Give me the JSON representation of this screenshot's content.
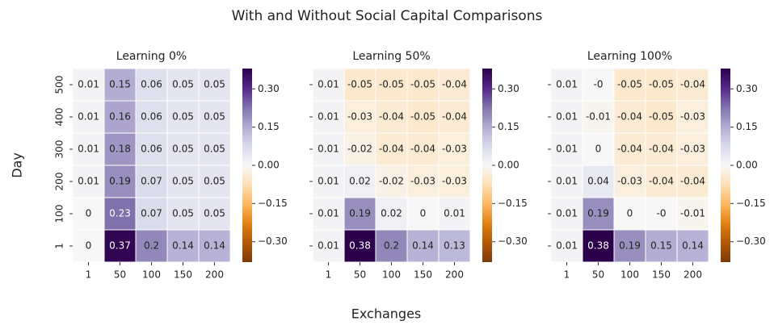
{
  "title": "With and Without Social Capital Comparisons",
  "xlabel": "Exchanges",
  "ylabel": "Day",
  "chart_data": [
    {
      "type": "heatmap",
      "title": "Learning 0%",
      "cmap": "PuOr",
      "categories": [
        "1",
        "50",
        "100",
        "150",
        "200"
      ],
      "y_categories": [
        "500",
        "400",
        "300",
        "200",
        "100",
        "1"
      ],
      "values": [
        [
          0.01,
          0.15,
          0.06,
          0.05,
          0.05
        ],
        [
          0.01,
          0.16,
          0.06,
          0.05,
          0.05
        ],
        [
          0.01,
          0.18,
          0.06,
          0.05,
          0.05
        ],
        [
          0.01,
          0.19,
          0.07,
          0.05,
          0.05
        ],
        [
          0,
          0.23,
          0.07,
          0.05,
          0.05
        ],
        [
          0,
          0.37,
          0.2,
          0.14,
          0.14
        ]
      ],
      "clim": [
        -0.38,
        0.38
      ],
      "cticks": [
        {
          "value": 0.3,
          "label": "0.30"
        },
        {
          "value": 0.15,
          "label": "0.15"
        },
        {
          "value": 0,
          "label": "0.00"
        },
        {
          "value": -0.15,
          "label": "−0.15"
        },
        {
          "value": -0.3,
          "label": "−0.30"
        }
      ]
    },
    {
      "type": "heatmap",
      "title": "Learning 50%",
      "cmap": "PuOr",
      "categories": [
        "1",
        "50",
        "100",
        "150",
        "200"
      ],
      "values": [
        [
          0.01,
          -0.05,
          -0.05,
          -0.05,
          -0.04
        ],
        [
          0.01,
          -0.03,
          -0.04,
          -0.05,
          -0.04
        ],
        [
          0.01,
          -0.02,
          -0.04,
          -0.04,
          -0.03
        ],
        [
          0.01,
          0.02,
          -0.02,
          -0.03,
          -0.03
        ],
        [
          0.01,
          0.19,
          0.02,
          0,
          0.01
        ],
        [
          0.01,
          0.38,
          0.2,
          0.14,
          0.13
        ]
      ],
      "clim": [
        -0.38,
        0.38
      ],
      "cticks": [
        {
          "value": 0.3,
          "label": "0.30"
        },
        {
          "value": 0.15,
          "label": "0.15"
        },
        {
          "value": 0,
          "label": "0.00"
        },
        {
          "value": -0.15,
          "label": "−0.15"
        },
        {
          "value": -0.3,
          "label": "−0.30"
        }
      ]
    },
    {
      "type": "heatmap",
      "title": "Learning 100%",
      "cmap": "PuOr",
      "categories": [
        "1",
        "50",
        "100",
        "150",
        "200"
      ],
      "values": [
        [
          0.01,
          0,
          -0.05,
          -0.05,
          -0.04
        ],
        [
          0.01,
          -0.01,
          -0.04,
          -0.05,
          -0.03
        ],
        [
          0.01,
          0,
          -0.04,
          -0.04,
          -0.03
        ],
        [
          0.01,
          0.04,
          -0.03,
          -0.04,
          -0.04
        ],
        [
          0.01,
          0.19,
          0,
          0,
          -0.01
        ],
        [
          0.01,
          0.38,
          0.19,
          0.15,
          0.14
        ]
      ],
      "value_labels": [
        [
          "0.01",
          "-0",
          "-0.05",
          "-0.05",
          "-0.04"
        ],
        [
          "0.01",
          "-0.01",
          "-0.04",
          "-0.05",
          "-0.03"
        ],
        [
          "0.01",
          "0",
          "-0.04",
          "-0.04",
          "-0.03"
        ],
        [
          "0.01",
          "0.04",
          "-0.03",
          "-0.04",
          "-0.04"
        ],
        [
          "0.01",
          "0.19",
          "0",
          "-0",
          "-0.01"
        ],
        [
          "0.01",
          "0.38",
          "0.19",
          "0.15",
          "0.14"
        ]
      ],
      "clim": [
        -0.38,
        0.38
      ],
      "cticks": [
        {
          "value": 0.3,
          "label": "0.30"
        },
        {
          "value": 0.15,
          "label": "0.15"
        },
        {
          "value": 0,
          "label": "0.00"
        },
        {
          "value": -0.15,
          "label": "−0.15"
        },
        {
          "value": -0.3,
          "label": "−0.30"
        }
      ]
    }
  ]
}
